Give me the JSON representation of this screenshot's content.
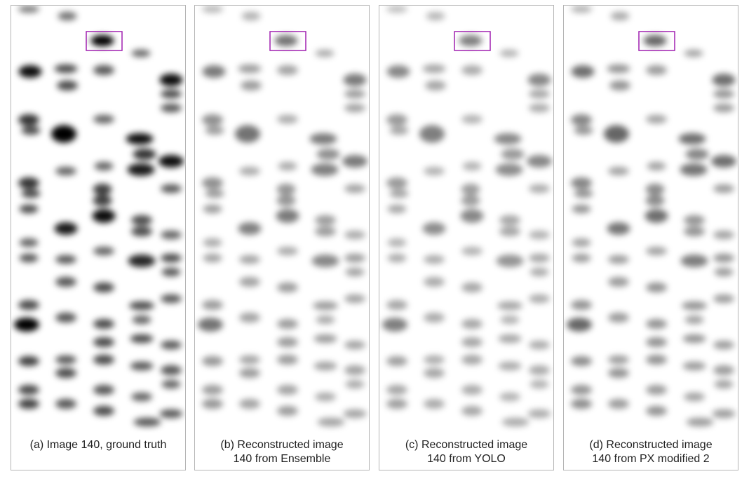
{
  "panels": [
    {
      "id": "a",
      "caption_lines": [
        "(a) Image 140, ground truth"
      ],
      "fade": 1.0
    },
    {
      "id": "b",
      "caption_lines": [
        "(b) Reconstructed image",
        "140 from Ensemble"
      ],
      "fade": 0.55
    },
    {
      "id": "c",
      "caption_lines": [
        "(c) Reconstructed image",
        "140 from YOLO"
      ],
      "fade": 0.5
    },
    {
      "id": "d",
      "caption_lines": [
        "(d) Reconstructed image",
        "140 from PX modified 2"
      ],
      "fade": 0.6
    }
  ],
  "colors": {
    "highlight_box": "#a020b0",
    "spot": "#000000",
    "border": "#b5b5b5"
  }
}
